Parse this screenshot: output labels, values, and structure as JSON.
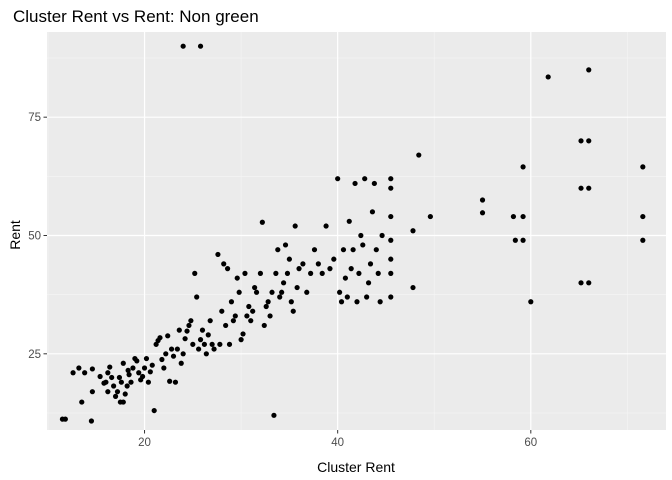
{
  "colors": {
    "panel": "#ebebeb",
    "grid_major": "#ffffff",
    "grid_minor": "#f5f5f5",
    "point": "#000000",
    "tick": "#333333"
  },
  "chart_data": {
    "type": "scatter",
    "title": "Cluster Rent vs Rent: Non green",
    "xlabel": "Cluster Rent",
    "ylabel": "Rent",
    "xlim": [
      9.9,
      74
    ],
    "ylim": [
      8.9,
      93
    ],
    "xticks": [
      20,
      40,
      60
    ],
    "yticks": [
      25,
      50,
      75
    ],
    "grid": true,
    "legend": "none",
    "points": [
      [
        11.5,
        11.2
      ],
      [
        11.8,
        11.2
      ],
      [
        13.2,
        22.0
      ],
      [
        12.6,
        21.0
      ],
      [
        13.5,
        14.8
      ],
      [
        13.8,
        21.0
      ],
      [
        14.5,
        10.8
      ],
      [
        14.6,
        21.8
      ],
      [
        14.6,
        17.0
      ],
      [
        15.4,
        20.2
      ],
      [
        15.8,
        18.8
      ],
      [
        16.0,
        19.0
      ],
      [
        16.2,
        21.0
      ],
      [
        16.4,
        22.2
      ],
      [
        16.2,
        17.0
      ],
      [
        16.6,
        20.0
      ],
      [
        16.8,
        18.2
      ],
      [
        17.0,
        16.0
      ],
      [
        17.2,
        17.0
      ],
      [
        17.4,
        20.0
      ],
      [
        17.6,
        19.0
      ],
      [
        17.5,
        14.8
      ],
      [
        17.8,
        14.8
      ],
      [
        17.8,
        23.0
      ],
      [
        18.0,
        16.5
      ],
      [
        18.2,
        18.2
      ],
      [
        18.4,
        20.6
      ],
      [
        18.6,
        19.0
      ],
      [
        18.3,
        21.5
      ],
      [
        18.8,
        22.0
      ],
      [
        19.0,
        24.0
      ],
      [
        19.2,
        23.5
      ],
      [
        19.4,
        21.0
      ],
      [
        19.6,
        19.5
      ],
      [
        19.8,
        20.2
      ],
      [
        20.0,
        22.0
      ],
      [
        20.2,
        24.0
      ],
      [
        20.4,
        19.0
      ],
      [
        20.6,
        21.2
      ],
      [
        20.8,
        22.6
      ],
      [
        21.0,
        13.0
      ],
      [
        21.2,
        27.0
      ],
      [
        21.4,
        27.8
      ],
      [
        21.6,
        28.4
      ],
      [
        21.8,
        23.8
      ],
      [
        22.0,
        22.0
      ],
      [
        22.2,
        25.0
      ],
      [
        22.4,
        28.8
      ],
      [
        22.6,
        19.2
      ],
      [
        22.8,
        26.0
      ],
      [
        23.0,
        24.5
      ],
      [
        23.2,
        19.0
      ],
      [
        23.4,
        26.0
      ],
      [
        23.6,
        30.0
      ],
      [
        23.8,
        23.0
      ],
      [
        24.0,
        25.0
      ],
      [
        24.2,
        28.2
      ],
      [
        24.4,
        29.8
      ],
      [
        24.6,
        31.0
      ],
      [
        24.8,
        32.0
      ],
      [
        25.0,
        27.0
      ],
      [
        25.2,
        42.0
      ],
      [
        25.4,
        37.0
      ],
      [
        25.6,
        26.0
      ],
      [
        25.8,
        28.0
      ],
      [
        26.0,
        30.0
      ],
      [
        26.2,
        27.0
      ],
      [
        26.4,
        25.0
      ],
      [
        26.6,
        29.0
      ],
      [
        26.8,
        32.0
      ],
      [
        27.0,
        27.0
      ],
      [
        27.2,
        26.0
      ],
      [
        27.6,
        46.0
      ],
      [
        27.8,
        27.0
      ],
      [
        28.0,
        34.0
      ],
      [
        28.2,
        44.0
      ],
      [
        28.4,
        31.0
      ],
      [
        28.6,
        43.0
      ],
      [
        28.8,
        27.0
      ],
      [
        29.0,
        36.0
      ],
      [
        29.2,
        32.0
      ],
      [
        29.4,
        33.0
      ],
      [
        29.6,
        41.0
      ],
      [
        29.8,
        38.0
      ],
      [
        30.0,
        28.0
      ],
      [
        30.2,
        29.2
      ],
      [
        30.4,
        42.0
      ],
      [
        30.6,
        33.0
      ],
      [
        30.8,
        35.0
      ],
      [
        31.0,
        32.0
      ],
      [
        31.2,
        34.0
      ],
      [
        31.4,
        39.0
      ],
      [
        31.6,
        38.0
      ],
      [
        32.0,
        42.0
      ],
      [
        32.2,
        52.8
      ],
      [
        32.4,
        31.0
      ],
      [
        32.6,
        35.0
      ],
      [
        32.8,
        36.0
      ],
      [
        33.0,
        33.0
      ],
      [
        33.2,
        38.0
      ],
      [
        33.4,
        12.0
      ],
      [
        33.6,
        42.0
      ],
      [
        33.8,
        47.0
      ],
      [
        34.0,
        37.0
      ],
      [
        34.2,
        38.0
      ],
      [
        34.4,
        40.0
      ],
      [
        34.6,
        48.0
      ],
      [
        34.8,
        42.0
      ],
      [
        35.0,
        45.0
      ],
      [
        35.2,
        36.0
      ],
      [
        35.4,
        34.0
      ],
      [
        35.6,
        52.0
      ],
      [
        35.8,
        39.0
      ],
      [
        36.0,
        43.0
      ],
      [
        36.4,
        44.0
      ],
      [
        36.8,
        38.0
      ],
      [
        37.2,
        42.0
      ],
      [
        37.6,
        47.0
      ],
      [
        38.0,
        44.0
      ],
      [
        38.4,
        42.0
      ],
      [
        38.8,
        52.0
      ],
      [
        39.2,
        43.0
      ],
      [
        39.6,
        45.0
      ],
      [
        40.0,
        62.0
      ],
      [
        40.2,
        38.0
      ],
      [
        40.4,
        36.0
      ],
      [
        40.6,
        47.0
      ],
      [
        40.8,
        41.0
      ],
      [
        41.0,
        37.0
      ],
      [
        41.2,
        53.0
      ],
      [
        41.4,
        43.0
      ],
      [
        41.6,
        47.0
      ],
      [
        41.8,
        61.0
      ],
      [
        42.0,
        36.0
      ],
      [
        42.2,
        42.0
      ],
      [
        42.4,
        50.0
      ],
      [
        42.6,
        48.0
      ],
      [
        42.8,
        62.0
      ],
      [
        43.0,
        37.0
      ],
      [
        43.2,
        40.0
      ],
      [
        43.4,
        44.0
      ],
      [
        43.6,
        55.0
      ],
      [
        43.8,
        61.0
      ],
      [
        44.0,
        47.0
      ],
      [
        44.2,
        42.0
      ],
      [
        44.4,
        36.0
      ],
      [
        44.6,
        50.0
      ],
      [
        45.5,
        62.0
      ],
      [
        45.5,
        60.0
      ],
      [
        45.5,
        54.0
      ],
      [
        45.5,
        49.0
      ],
      [
        45.5,
        45.0
      ],
      [
        45.5,
        42.0
      ],
      [
        45.5,
        37.0
      ],
      [
        47.8,
        39.0
      ],
      [
        47.8,
        51.0
      ],
      [
        48.4,
        67.0
      ],
      [
        49.6,
        54.0
      ],
      [
        55.0,
        57.5
      ],
      [
        55.0,
        54.8
      ],
      [
        58.2,
        54.0
      ],
      [
        58.4,
        49.0
      ],
      [
        59.2,
        64.5
      ],
      [
        59.2,
        54.0
      ],
      [
        59.2,
        49.0
      ],
      [
        60.0,
        36.0
      ],
      [
        61.8,
        83.5
      ],
      [
        65.2,
        70.0
      ],
      [
        65.2,
        60.0
      ],
      [
        65.2,
        40.0
      ],
      [
        66.0,
        85.0
      ],
      [
        66.0,
        70.0
      ],
      [
        66.0,
        60.0
      ],
      [
        66.0,
        40.0
      ],
      [
        71.6,
        64.5
      ],
      [
        71.6,
        54.0
      ],
      [
        71.6,
        49.0
      ],
      [
        24.0,
        90.0
      ],
      [
        25.8,
        90.0
      ]
    ]
  }
}
